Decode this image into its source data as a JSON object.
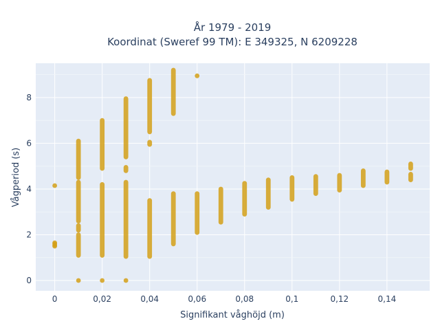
{
  "chart_data": {
    "type": "scatter",
    "title": "År 1979 - 2019",
    "subtitle": "Koordinat (Sweref 99 TM): E 349325, N 6209228",
    "xlabel": "Signifikant våghöjd (m)",
    "ylabel": "Vågperiod (s)",
    "xlim": [
      -0.008,
      0.158
    ],
    "ylim": [
      -0.45,
      9.5
    ],
    "x_ticks": [
      0,
      0.02,
      0.04,
      0.06,
      0.08,
      0.1,
      0.12,
      0.14
    ],
    "x_tick_labels": [
      "0",
      "0,02",
      "0,04",
      "0,06",
      "0,08",
      "0,1",
      "0,12",
      "0,14"
    ],
    "y_ticks": [
      0,
      2,
      4,
      6,
      8
    ],
    "y_tick_labels": [
      "0",
      "2",
      "4",
      "6",
      "8"
    ],
    "grid": true,
    "marker_color": "#d4a017",
    "plot_background": "#e5ecf6",
    "points": [
      {
        "x": 0,
        "y": 1.5
      },
      {
        "x": 0,
        "y": 1.55
      },
      {
        "x": 0,
        "y": 1.6
      },
      {
        "x": 0,
        "y": 1.65
      },
      {
        "x": 0,
        "y": 4.15
      },
      {
        "x": 0.01,
        "y": 0
      },
      {
        "x": 0.02,
        "y": 0
      },
      {
        "x": 0.03,
        "y": 0
      },
      {
        "x": 0.06,
        "y": 8.95
      }
    ],
    "ranges": [
      {
        "x": 0.01,
        "y_min": 1.1,
        "y_max": 2.0
      },
      {
        "x": 0.01,
        "y_min": 2.2,
        "y_max": 2.4
      },
      {
        "x": 0.01,
        "y_min": 2.6,
        "y_max": 4.3
      },
      {
        "x": 0.01,
        "y_min": 4.5,
        "y_max": 6.1
      },
      {
        "x": 0.02,
        "y_min": 1.1,
        "y_max": 4.2
      },
      {
        "x": 0.02,
        "y_min": 4.9,
        "y_max": 7.0
      },
      {
        "x": 0.03,
        "y_min": 1.05,
        "y_max": 4.3
      },
      {
        "x": 0.03,
        "y_min": 4.8,
        "y_max": 4.95
      },
      {
        "x": 0.03,
        "y_min": 5.4,
        "y_max": 7.95
      },
      {
        "x": 0.04,
        "y_min": 1.05,
        "y_max": 3.5
      },
      {
        "x": 0.04,
        "y_min": 5.95,
        "y_max": 6.05
      },
      {
        "x": 0.04,
        "y_min": 6.5,
        "y_max": 8.75
      },
      {
        "x": 0.05,
        "y_min": 1.6,
        "y_max": 3.8
      },
      {
        "x": 0.05,
        "y_min": 7.3,
        "y_max": 9.2
      },
      {
        "x": 0.06,
        "y_min": 2.1,
        "y_max": 3.8
      },
      {
        "x": 0.07,
        "y_min": 2.55,
        "y_max": 4.0
      },
      {
        "x": 0.08,
        "y_min": 2.9,
        "y_max": 4.25
      },
      {
        "x": 0.09,
        "y_min": 3.2,
        "y_max": 4.4
      },
      {
        "x": 0.1,
        "y_min": 3.55,
        "y_max": 4.5
      },
      {
        "x": 0.11,
        "y_min": 3.8,
        "y_max": 4.55
      },
      {
        "x": 0.12,
        "y_min": 3.95,
        "y_max": 4.6
      },
      {
        "x": 0.13,
        "y_min": 4.15,
        "y_max": 4.8
      },
      {
        "x": 0.14,
        "y_min": 4.3,
        "y_max": 4.75
      },
      {
        "x": 0.15,
        "y_min": 4.4,
        "y_max": 4.65
      },
      {
        "x": 0.15,
        "y_min": 4.9,
        "y_max": 5.1
      }
    ]
  }
}
